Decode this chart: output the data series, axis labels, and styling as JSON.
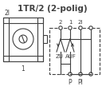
{
  "title": "1TR/2 (2-polig)",
  "title_fontsize": 7.5,
  "bg_color": "#ffffff",
  "line_color": "#404040",
  "text_color": "#404040",
  "label_2I_left": "2I",
  "label_1_bottom": "1",
  "label_top": [
    "2",
    "1",
    "2I",
    ""
  ],
  "label_ZU": "ZU",
  "label_AUF": "AUF",
  "label_P": "P",
  "label_PI": "PI"
}
